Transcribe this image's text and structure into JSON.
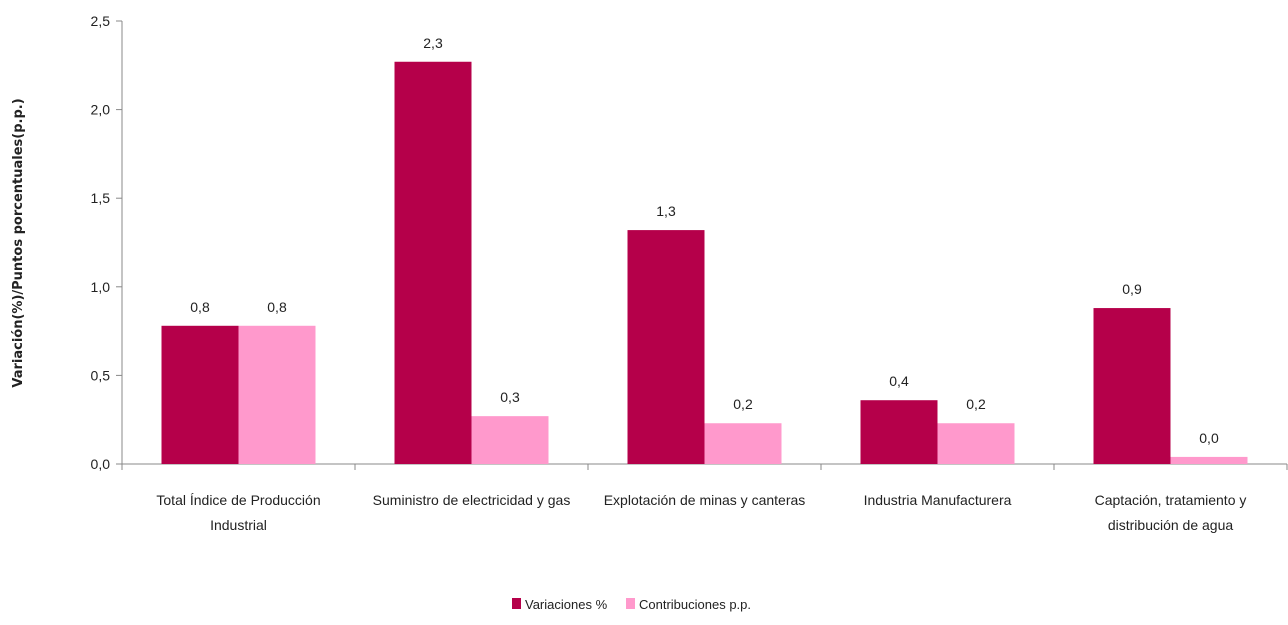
{
  "chart_data": {
    "type": "bar",
    "title": "",
    "xlabel": "",
    "ylabel": "Variación(%)/Puntos porcentuales(p.p.)",
    "ylim": [
      0,
      2.5
    ],
    "yticks": [
      "0,0",
      "0,5",
      "1,0",
      "1,5",
      "2,0",
      "2,5"
    ],
    "categories": [
      [
        "Total Índice de Producción",
        "Industrial"
      ],
      [
        "Suministro de electricidad y gas"
      ],
      [
        "Explotación de minas y canteras"
      ],
      [
        "Industria Manufacturera"
      ],
      [
        "Captación, tratamiento y",
        "distribución de agua"
      ]
    ],
    "series": [
      {
        "name": "Variaciones %",
        "color": "#b5004a",
        "values": [
          0.78,
          2.27,
          1.32,
          0.36,
          0.88
        ],
        "labels": [
          "0,8",
          "2,3",
          "1,3",
          "0,4",
          "0,9"
        ]
      },
      {
        "name": "Contribuciones p.p.",
        "color": "#ff99cc",
        "values": [
          0.78,
          0.27,
          0.23,
          0.23,
          0.04
        ],
        "labels": [
          "0,8",
          "0,3",
          "0,2",
          "0,2",
          "0,0"
        ]
      }
    ],
    "grid": false,
    "legend_position": "bottom-center"
  }
}
